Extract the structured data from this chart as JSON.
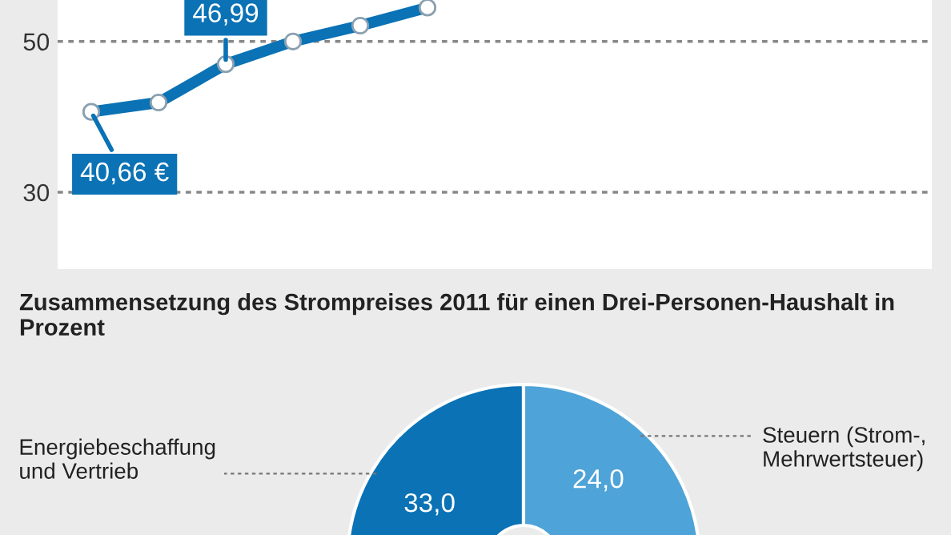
{
  "chart_data": [
    {
      "type": "line",
      "categories": [
        null,
        null,
        null,
        null,
        null,
        null,
        null,
        null,
        null,
        null,
        null,
        null,
        null
      ],
      "series": [
        {
          "color": "#0a72b5",
          "values": [
            40.66,
            41.9,
            46.99,
            50.0,
            52.1,
            54.5,
            null,
            null,
            null,
            null,
            null,
            null,
            null
          ],
          "value_labels": [
            "40,66 €",
            null,
            "46,99",
            null,
            null,
            null,
            null,
            null,
            null,
            null,
            null,
            null,
            null
          ]
        }
      ],
      "ylim": [
        19.8,
        55.5
      ],
      "yticks": [
        30,
        50
      ],
      "grid": "y",
      "marker": "circle",
      "line_style": "solid",
      "tick_labels": "y"
    },
    {
      "type": "donut",
      "title": "Zusammensetzung des Strompreises 2011 für einen Drei-Personen-Haushalt in Prozent",
      "categories": [
        "Energiebeschaffung und Vertrieb",
        "Steuern (Strom-, Mehrwertsteuer)"
      ],
      "values": [
        33.0,
        24.0
      ],
      "colors": [
        "#0a72b5",
        "#4ea3d8"
      ],
      "value_labels": [
        "33,0",
        "24,0"
      ]
    }
  ]
}
